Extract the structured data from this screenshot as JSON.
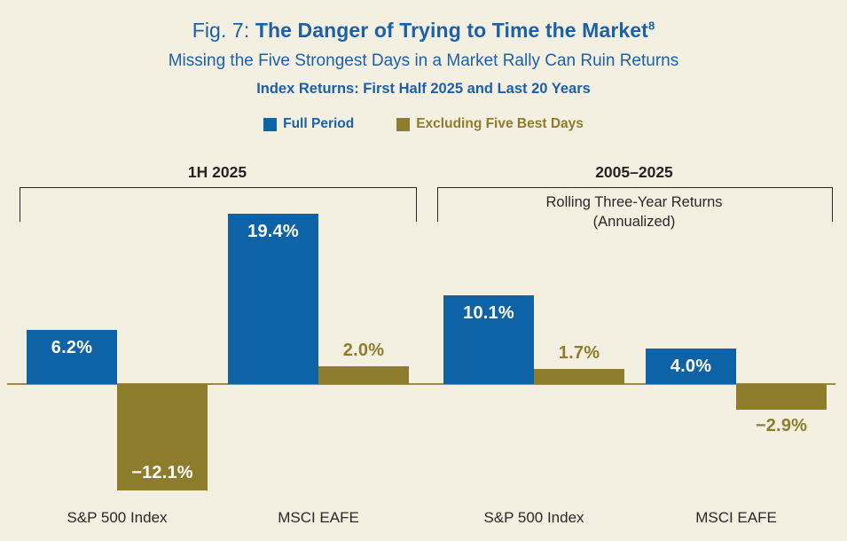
{
  "figure": {
    "fig_label": "Fig. 7:",
    "title": "The Danger of Trying to Time the Market",
    "title_superscript": "8",
    "subtitle": "Missing the Five Strongest Days in a Market Rally Can Ruin Returns",
    "caption": "Index Returns: First Half 2025 and Last 20 Years"
  },
  "legend": {
    "items": [
      {
        "label": "Full Period",
        "color": "#0e62a6"
      },
      {
        "label": "Excluding Five Best Days",
        "color": "#8e7c2d"
      }
    ]
  },
  "colors": {
    "background": "#f4f0e1",
    "blue": "#0e62a6",
    "gold": "#8e7c2d",
    "title_blue": "#1c60a7",
    "dark_text": "#2b2727",
    "axis_line": "#9c8a49",
    "bar_label_white": "#ffffff"
  },
  "chart_data": {
    "type": "bar",
    "unit": "%",
    "baseline": 0,
    "ylim": [
      -14,
      21
    ],
    "grid": false,
    "legend_position": "top",
    "series_names": [
      "Full Period",
      "Excluding Five Best Days"
    ],
    "groups": [
      {
        "period": "1H 2025",
        "note_line1": "",
        "note_line2": "",
        "categories": [
          {
            "label": "S&P 500 Index",
            "bars": [
              {
                "series": "Full Period",
                "value": 6.2,
                "display": "6.2%",
                "label_pos": "inside-top"
              },
              {
                "series": "Excluding Five Best Days",
                "value": -12.1,
                "display": "−12.1%",
                "label_pos": "inside-bottom"
              }
            ]
          },
          {
            "label": "MSCI EAFE",
            "bars": [
              {
                "series": "Full Period",
                "value": 19.4,
                "display": "19.4%",
                "label_pos": "inside-top"
              },
              {
                "series": "Excluding Five Best Days",
                "value": 2.0,
                "display": "2.0%",
                "label_pos": "above"
              }
            ]
          }
        ]
      },
      {
        "period": "2005–2025",
        "note_line1": "Rolling Three-Year Returns",
        "note_line2": "(Annualized)",
        "categories": [
          {
            "label": "S&P 500 Index",
            "bars": [
              {
                "series": "Full Period",
                "value": 10.1,
                "display": "10.1%",
                "label_pos": "inside-top"
              },
              {
                "series": "Excluding Five Best Days",
                "value": 1.7,
                "display": "1.7%",
                "label_pos": "above"
              }
            ]
          },
          {
            "label": "MSCI EAFE",
            "bars": [
              {
                "series": "Full Period",
                "value": 4.0,
                "display": "4.0%",
                "label_pos": "inside-top"
              },
              {
                "series": "Excluding Five Best Days",
                "value": -2.9,
                "display": "−2.9%",
                "label_pos": "below"
              }
            ]
          }
        ]
      }
    ]
  }
}
